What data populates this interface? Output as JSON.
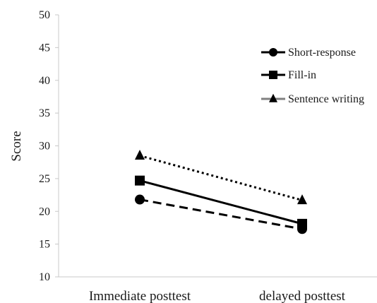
{
  "chart_data": {
    "type": "line",
    "title": "",
    "xlabel": "",
    "ylabel": "Score",
    "categories": [
      "Immediate posttest",
      "delayed posttest"
    ],
    "ylim": [
      10,
      50
    ],
    "yticks": [
      10,
      15,
      20,
      25,
      30,
      35,
      40,
      45,
      50
    ],
    "grid": false,
    "legend_position": "top-right",
    "series": [
      {
        "name": "Short-response",
        "values": [
          21.8,
          17.3
        ],
        "marker": "circle",
        "line_style": "dashed",
        "color": "#000000"
      },
      {
        "name": "Fill-in",
        "values": [
          24.7,
          18.1
        ],
        "marker": "square",
        "line_style": "solid",
        "color": "#000000"
      },
      {
        "name": "Sentence writing",
        "values": [
          28.5,
          21.7
        ],
        "marker": "triangle",
        "line_style": "dotted",
        "color": "#000000",
        "legend_line_color": "#808080"
      }
    ]
  }
}
